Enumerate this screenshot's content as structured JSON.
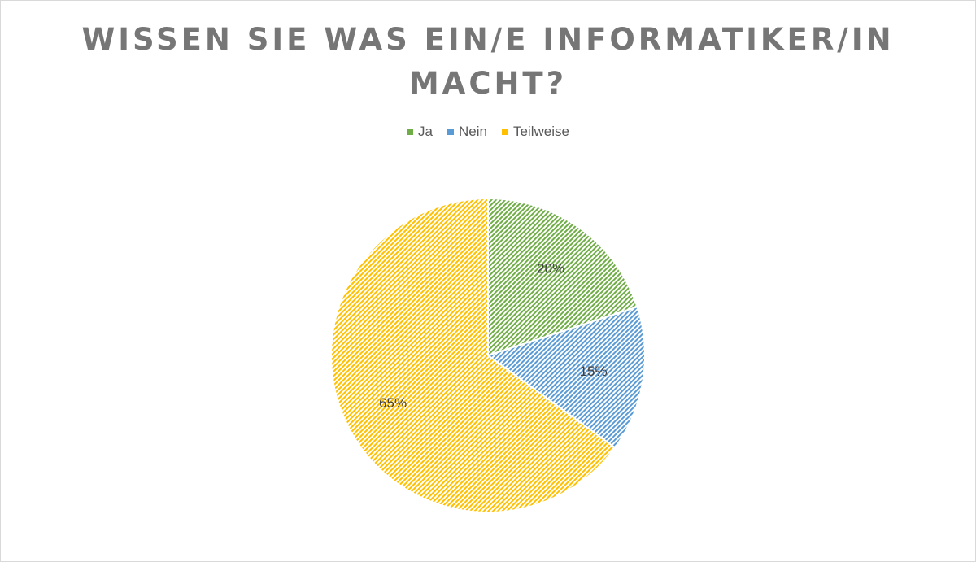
{
  "colors": {
    "ja": "#70ad47",
    "nein": "#5b9bd5",
    "teilweise": "#ffc000"
  },
  "chart_data": {
    "type": "pie",
    "title": "WISSEN SIE WAS EIN/E INFORMATIKER/IN MACHT?",
    "categories": [
      "Ja",
      "Nein",
      "Teilweise"
    ],
    "values": [
      20,
      15,
      65
    ],
    "labels": [
      "20%",
      "15%",
      "65%"
    ],
    "legend_position": "top",
    "fill_pattern": "diagonal-hatch"
  }
}
